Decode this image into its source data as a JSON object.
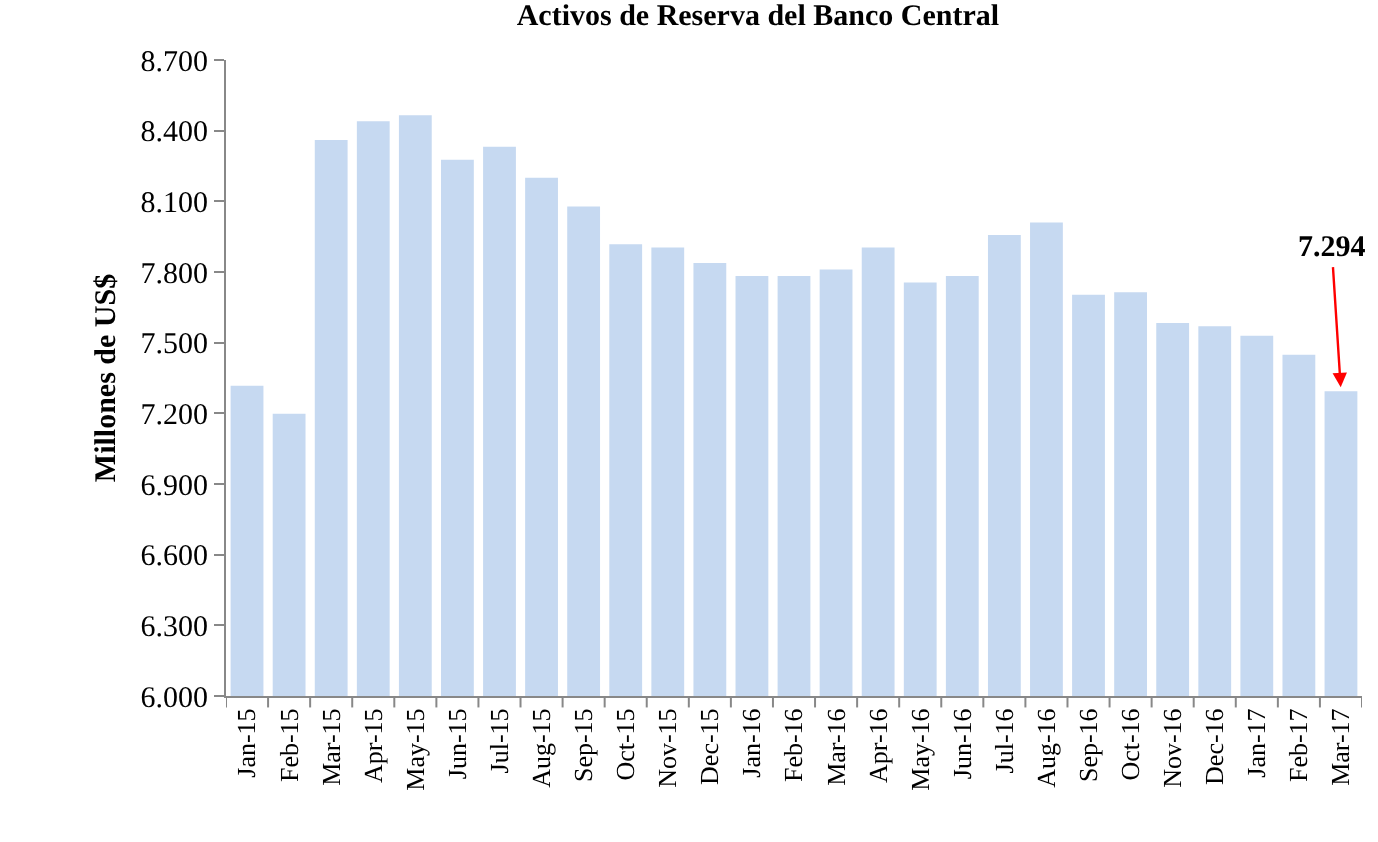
{
  "chart_data": {
    "type": "bar",
    "title": "Activos de Reserva del Banco Central",
    "ylabel": "Millones de US$",
    "categories": [
      "Jan-15",
      "Feb-15",
      "Mar-15",
      "Apr-15",
      "May-15",
      "Jun-15",
      "Jul-15",
      "Aug-15",
      "Sep-15",
      "Oct-15",
      "Nov-15",
      "Dec-15",
      "Jan-16",
      "Feb-16",
      "Mar-16",
      "Apr-16",
      "May-16",
      "Jun-16",
      "Jul-16",
      "Aug-16",
      "Sep-16",
      "Oct-16",
      "Nov-16",
      "Dec-16",
      "Jan-17",
      "Feb-17",
      "Mar-17"
    ],
    "values": [
      7317,
      7198,
      8360,
      8440,
      8465,
      8277,
      8332,
      8200,
      8078,
      7918,
      7904,
      7838,
      7783,
      7783,
      7811,
      7904,
      7755,
      7783,
      7957,
      8010,
      7703,
      7714,
      7584,
      7570,
      7529,
      7449,
      7294
    ],
    "color": "#c6d9f1",
    "ylim": [
      6000,
      8700
    ],
    "yticks": [
      {
        "value": 6000,
        "label": "6.000"
      },
      {
        "value": 6300,
        "label": "6.300"
      },
      {
        "value": 6600,
        "label": "6.600"
      },
      {
        "value": 6900,
        "label": "6.900"
      },
      {
        "value": 7200,
        "label": "7.200"
      },
      {
        "value": 7500,
        "label": "7.500"
      },
      {
        "value": 7800,
        "label": "7.800"
      },
      {
        "value": 8100,
        "label": "8.100"
      },
      {
        "value": 8400,
        "label": "8.400"
      },
      {
        "value": 8700,
        "label": "8.700"
      }
    ],
    "annotations": [
      {
        "text": "7.294",
        "x": "Mar-17",
        "y": 7294
      }
    ],
    "grid": false,
    "legend": false
  }
}
